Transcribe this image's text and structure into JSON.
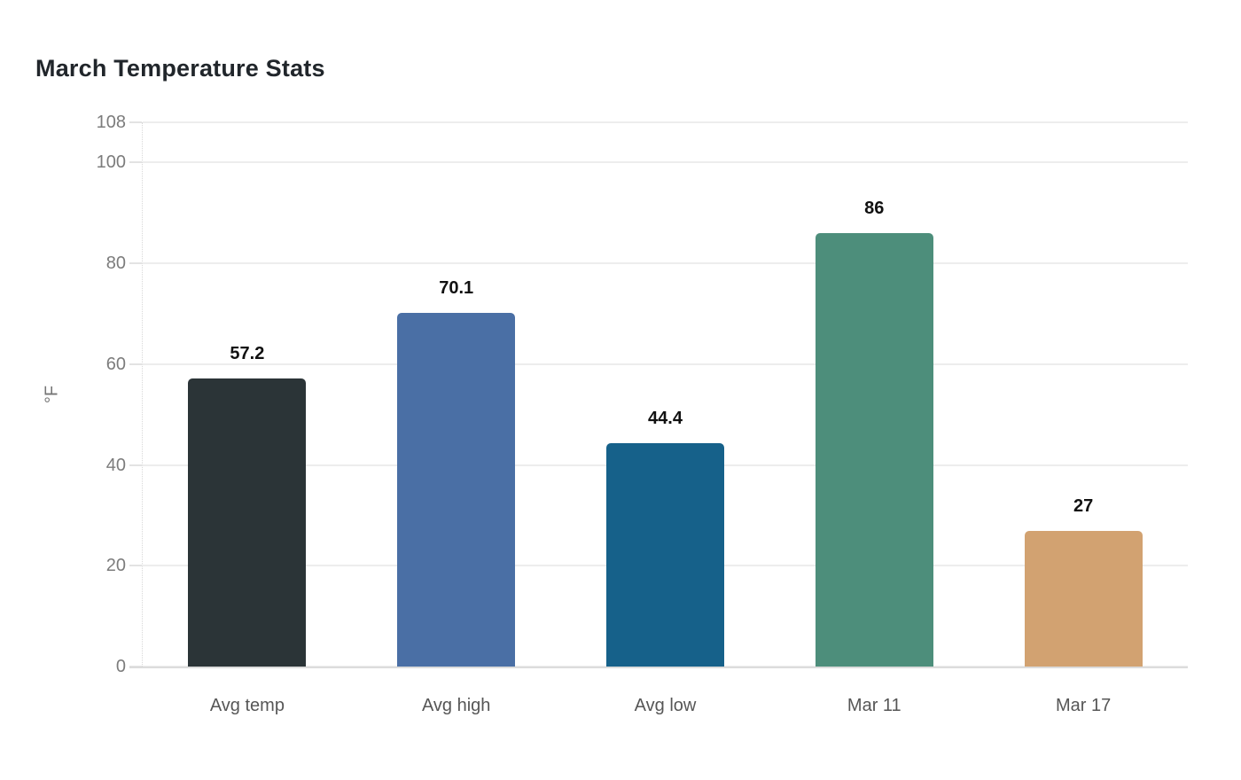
{
  "chart_data": {
    "type": "bar",
    "title": "March Temperature Stats",
    "ylabel": "°F",
    "xlabel": "",
    "categories": [
      "Avg temp",
      "Avg high",
      "Avg low",
      "Mar 11",
      "Mar 17"
    ],
    "values": [
      57.2,
      70.1,
      44.4,
      86,
      27
    ],
    "value_labels": [
      "57.2",
      "70.1",
      "44.4",
      "86",
      "27"
    ],
    "bar_colors": [
      "#2b3437",
      "#4a6fa5",
      "#16618a",
      "#4d8e7b",
      "#d2a271"
    ],
    "ylim": [
      0,
      108
    ],
    "yticks": [
      0,
      20,
      40,
      60,
      80,
      100,
      108
    ],
    "grid": "horizontal",
    "legend": "none",
    "background_color": "#ffffff",
    "title_color": "#21262b",
    "axis_text_color": "#7c7c7c",
    "x_label_color": "#565656",
    "value_label_color": "#111111",
    "grid_color": "#ededed"
  }
}
